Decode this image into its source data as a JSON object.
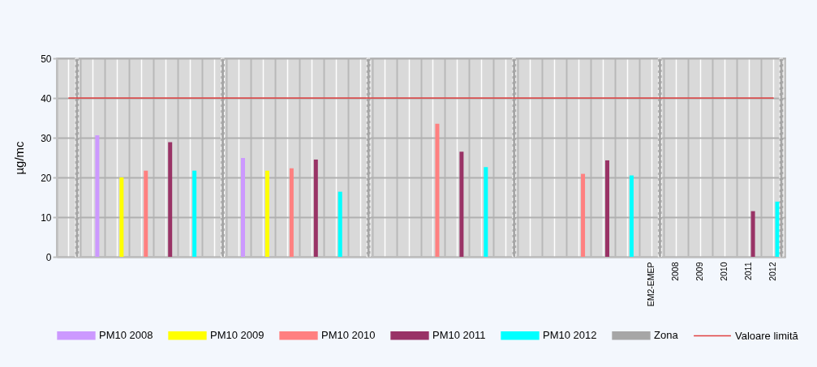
{
  "chart_data": {
    "type": "bar",
    "ylabel": "µg/mc",
    "categories": [
      null,
      null,
      null,
      null,
      null,
      null,
      null,
      null,
      null,
      null,
      null,
      null,
      null,
      null,
      null,
      null,
      null,
      null,
      null,
      null,
      null,
      null,
      null,
      null,
      "EM2-EMEP",
      "2008",
      "2009",
      "2010",
      "2011",
      "2012"
    ],
    "series": [
      {
        "name": "PM10 2008",
        "color": "#cc99ff",
        "values": [
          null,
          30.6,
          null,
          null,
          null,
          null,
          null,
          24.9,
          null,
          null,
          null,
          null,
          null,
          null,
          null,
          null,
          null,
          null,
          null,
          null,
          null,
          null,
          null,
          null,
          null,
          null,
          null,
          null,
          null,
          null
        ]
      },
      {
        "name": "PM10 2009",
        "color": "#ffff00",
        "values": [
          null,
          null,
          20,
          null,
          null,
          null,
          null,
          null,
          21.7,
          null,
          null,
          null,
          null,
          null,
          null,
          null,
          null,
          null,
          null,
          null,
          null,
          null,
          null,
          null,
          null,
          null,
          null,
          null,
          null,
          null
        ]
      },
      {
        "name": "PM10 2010",
        "color": "#ff8080",
        "values": [
          null,
          null,
          null,
          21.7,
          null,
          null,
          null,
          null,
          null,
          22.3,
          null,
          null,
          null,
          null,
          null,
          33.5,
          null,
          null,
          null,
          null,
          null,
          20.9,
          null,
          null,
          null,
          null,
          null,
          null,
          null,
          null
        ]
      },
      {
        "name": "PM10 2011",
        "color": "#993366",
        "values": [
          null,
          null,
          null,
          null,
          28.9,
          null,
          null,
          null,
          null,
          null,
          24.5,
          null,
          null,
          null,
          null,
          null,
          26.5,
          null,
          null,
          null,
          null,
          null,
          24.3,
          null,
          null,
          null,
          null,
          null,
          11.5,
          null
        ]
      },
      {
        "name": "PM10 2012",
        "color": "#00ffff",
        "values": [
          null,
          null,
          null,
          null,
          null,
          21.7,
          null,
          null,
          null,
          null,
          null,
          16.4,
          null,
          null,
          null,
          null,
          null,
          22.6,
          null,
          null,
          null,
          null,
          null,
          20.5,
          null,
          null,
          null,
          null,
          null,
          13.9
        ]
      },
      {
        "name": "Zona",
        "color": "#a6a6a6",
        "line_style": "dashed",
        "values": [
          50,
          null,
          null,
          null,
          null,
          null,
          50,
          null,
          null,
          null,
          null,
          null,
          50,
          null,
          null,
          null,
          null,
          null,
          50,
          null,
          null,
          null,
          null,
          null,
          50,
          null,
          null,
          null,
          null,
          50
        ]
      },
      {
        "name": "Valoare limită",
        "color": "#e04040",
        "type": "line",
        "values": [
          40,
          40,
          40,
          40,
          40,
          40,
          40,
          40,
          40,
          40,
          40,
          40,
          40,
          40,
          40,
          40,
          40,
          40,
          40,
          40,
          40,
          40,
          40,
          40,
          40,
          40,
          40,
          40,
          40,
          40
        ]
      }
    ],
    "ylim": [
      0,
      50
    ],
    "yticks": [
      0,
      10,
      20,
      30,
      40,
      50
    ],
    "grid": true,
    "legend": "bottom"
  }
}
